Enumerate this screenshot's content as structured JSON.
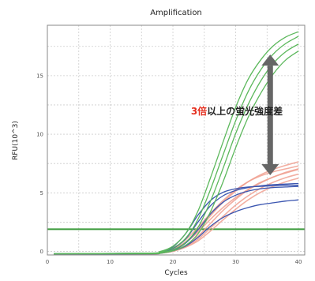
{
  "chart_data": {
    "type": "line",
    "title": "Amplification",
    "xlabel": "Cycles",
    "ylabel": "RFU(10^3)",
    "xlim": [
      0,
      41
    ],
    "ylim": [
      -0.3,
      19.3
    ],
    "xticks": [
      0,
      10,
      20,
      30,
      40
    ],
    "yticks": [
      0,
      5,
      10,
      15
    ],
    "grid": true,
    "colors": {
      "green": "#5cb85c",
      "red": "#f0a090",
      "blue": "#3a55b0",
      "threshold": "#3a9a3a",
      "arrow": "#666666",
      "highlight": "#e53020",
      "plot_border": "#888888",
      "grid": "#cccccc"
    },
    "threshold": {
      "value": 1.9,
      "color": "#3a9a3a"
    },
    "series": [
      {
        "group": "green",
        "x": [
          1,
          16,
          18,
          20,
          22,
          24,
          26,
          28,
          30,
          32,
          34,
          36,
          38,
          40
        ],
        "y": [
          -0.2,
          -0.15,
          0.0,
          0.45,
          1.5,
          3.45,
          6.3,
          9.35,
          12.3,
          14.7,
          16.35,
          17.55,
          18.3,
          18.75
        ]
      },
      {
        "group": "green",
        "x": [
          1,
          16,
          18,
          20,
          22,
          24,
          26,
          28,
          30,
          32,
          34,
          36,
          38,
          40
        ],
        "y": [
          -0.2,
          -0.15,
          -0.05,
          0.3,
          1.1,
          2.75,
          5.3,
          8.25,
          11.15,
          13.65,
          15.5,
          16.85,
          17.75,
          18.35
        ]
      },
      {
        "group": "green",
        "x": [
          1,
          16,
          18,
          20,
          22,
          24,
          26,
          28,
          30,
          32,
          34,
          36,
          38,
          40
        ],
        "y": [
          -0.2,
          -0.15,
          -0.1,
          0.15,
          0.75,
          2.05,
          4.3,
          7.1,
          10.05,
          12.55,
          14.55,
          16.05,
          17.05,
          17.7
        ]
      },
      {
        "group": "green",
        "x": [
          1,
          16,
          18,
          20,
          22,
          24,
          26,
          28,
          30,
          32,
          34,
          36,
          38,
          40
        ],
        "y": [
          -0.2,
          -0.2,
          -0.15,
          0.05,
          0.5,
          1.5,
          3.4,
          5.95,
          8.85,
          11.45,
          13.5,
          15.15,
          16.35,
          17.1
        ]
      },
      {
        "group": "red",
        "x": [
          1,
          16,
          18,
          20,
          22,
          24,
          26,
          28,
          30,
          32,
          34,
          36,
          38,
          40
        ],
        "y": [
          -0.25,
          -0.2,
          -0.1,
          0.2,
          0.75,
          1.65,
          2.75,
          3.75,
          4.6,
          5.3,
          5.9,
          6.35,
          6.75,
          7.05
        ]
      },
      {
        "group": "red",
        "x": [
          1,
          16,
          18,
          20,
          22,
          24,
          26,
          28,
          30,
          32,
          34,
          36,
          38,
          40
        ],
        "y": [
          -0.25,
          -0.2,
          -0.1,
          0.2,
          0.8,
          1.8,
          3.05,
          4.2,
          5.15,
          5.95,
          6.55,
          7.0,
          7.35,
          7.65
        ]
      },
      {
        "group": "red",
        "x": [
          1,
          16,
          18,
          20,
          22,
          24,
          26,
          28,
          30,
          32,
          34,
          36,
          38,
          40
        ],
        "y": [
          -0.25,
          -0.2,
          -0.15,
          0.1,
          0.5,
          1.3,
          2.4,
          3.5,
          4.45,
          5.25,
          5.85,
          6.35,
          6.7,
          7.0
        ]
      },
      {
        "group": "red",
        "x": [
          1,
          16,
          18,
          20,
          22,
          24,
          26,
          28,
          30,
          32,
          34,
          36,
          38,
          40
        ],
        "y": [
          -0.25,
          -0.2,
          -0.15,
          0.05,
          0.4,
          1.05,
          2.0,
          3.0,
          3.95,
          4.75,
          5.4,
          5.9,
          6.3,
          6.6
        ]
      },
      {
        "group": "red",
        "x": [
          1,
          16,
          18,
          20,
          22,
          24,
          26,
          28,
          30,
          32,
          34,
          36,
          38,
          40
        ],
        "y": [
          -0.25,
          -0.2,
          -0.15,
          0.0,
          0.35,
          0.9,
          1.75,
          2.7,
          3.6,
          4.4,
          5.05,
          5.55,
          5.95,
          6.25
        ]
      },
      {
        "group": "red",
        "x": [
          1,
          16,
          18,
          20,
          22,
          24,
          26,
          28,
          30,
          32,
          34,
          36,
          38,
          40
        ],
        "y": [
          -0.25,
          -0.2,
          -0.1,
          0.3,
          1.0,
          2.05,
          3.25,
          4.35,
          5.25,
          5.95,
          6.45,
          6.8,
          7.05,
          7.3
        ]
      },
      {
        "group": "blue",
        "x": [
          1,
          16,
          18,
          20,
          22,
          24,
          26,
          28,
          30,
          32,
          34,
          36,
          38,
          40
        ],
        "y": [
          -0.2,
          -0.15,
          -0.05,
          0.4,
          1.5,
          3.1,
          4.35,
          5.05,
          5.35,
          5.5,
          5.55,
          5.6,
          5.65,
          5.65
        ]
      },
      {
        "group": "blue",
        "x": [
          1,
          16,
          18,
          20,
          22,
          24,
          26,
          28,
          30,
          32,
          34,
          36,
          38,
          40
        ],
        "y": [
          -0.2,
          -0.15,
          -0.1,
          0.25,
          1.05,
          2.5,
          3.9,
          4.75,
          5.2,
          5.45,
          5.6,
          5.7,
          5.75,
          5.8
        ]
      },
      {
        "group": "blue",
        "x": [
          1,
          16,
          18,
          20,
          22,
          24,
          26,
          28,
          30,
          32,
          34,
          36,
          38,
          40
        ],
        "y": [
          -0.2,
          -0.2,
          -0.15,
          0.1,
          0.7,
          1.85,
          3.2,
          4.2,
          4.8,
          5.15,
          5.35,
          5.45,
          5.5,
          5.55
        ]
      },
      {
        "group": "blue",
        "x": [
          1,
          16,
          18,
          20,
          22,
          24,
          26,
          28,
          30,
          32,
          34,
          36,
          38,
          40
        ],
        "y": [
          -0.2,
          -0.2,
          -0.15,
          0.05,
          0.45,
          1.2,
          2.15,
          2.9,
          3.4,
          3.75,
          4.0,
          4.15,
          4.3,
          4.4
        ]
      }
    ],
    "annotation": {
      "highlight": "3倍",
      "text": "以上の蛍光強度差",
      "arrow_from": 6.5,
      "arrow_to": 16.8,
      "arrow_x": 35.5
    }
  }
}
